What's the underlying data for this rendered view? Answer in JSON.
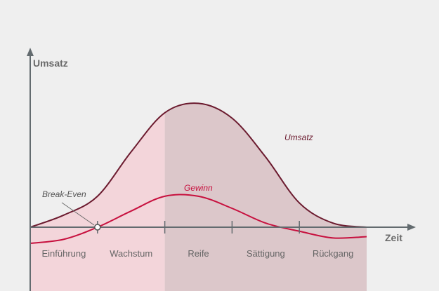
{
  "chart_data": {
    "type": "area",
    "ylabel": "Umsatz",
    "xlabel": "Zeit",
    "phases": [
      "Einführung",
      "Wachstum",
      "Reife",
      "Sättigung",
      "Rückgang"
    ],
    "series": [
      {
        "name": "Umsatz",
        "color": "#6b1a2e",
        "x": [
          0,
          0.5,
          1,
          1.5,
          2,
          2.5,
          3,
          3.5,
          4,
          4.5,
          5
        ],
        "values": [
          0,
          0.9,
          2.3,
          5.6,
          8.5,
          9.2,
          8.1,
          5.2,
          1.8,
          0.3,
          0
        ]
      },
      {
        "name": "Gewinn",
        "color": "#c7103e",
        "x": [
          0,
          0.5,
          1,
          1.5,
          2,
          2.5,
          3,
          3.5,
          4,
          4.5,
          5
        ],
        "values": [
          -1.2,
          -0.9,
          0,
          1.2,
          2.3,
          2.3,
          1.4,
          0.3,
          -0.3,
          -0.8,
          -0.7
        ]
      }
    ],
    "annotations": [
      {
        "label": "Break-Even",
        "x": 1.0,
        "y": 0
      }
    ],
    "colors": {
      "phase_light": "#f3d5da",
      "phase_dark": "#dcc7ca",
      "axis": "#636b6f",
      "background": "#efefef"
    }
  }
}
